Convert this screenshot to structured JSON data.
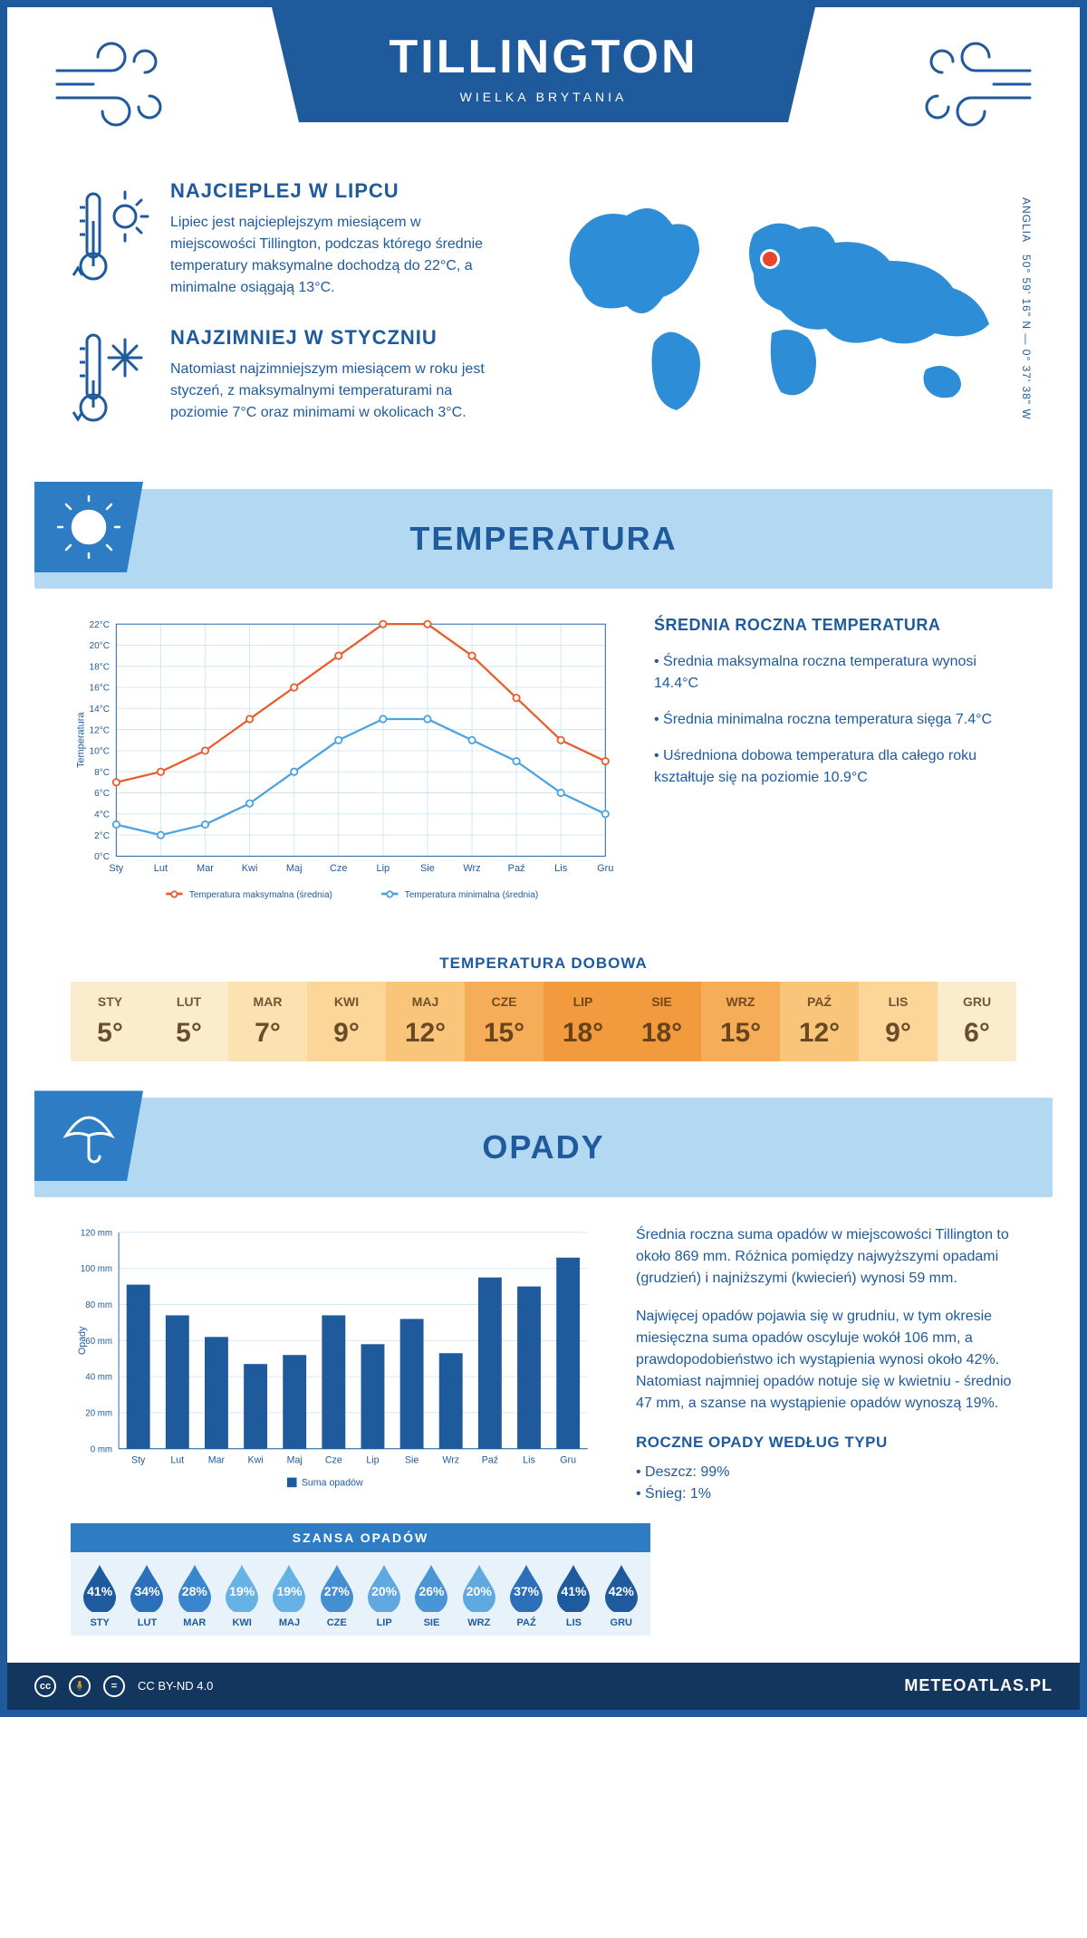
{
  "header": {
    "city": "TILLINGTON",
    "country": "WIELKA BRYTANIA"
  },
  "coords": {
    "lat": "50° 59' 16\" N",
    "lon": "0° 37' 38\" W",
    "region": "ANGLIA"
  },
  "facts": {
    "warmest": {
      "title": "NAJCIEPLEJ W LIPCU",
      "text": "Lipiec jest najcieplejszym miesiącem w miejscowości Tillington, podczas którego średnie temperatury maksymalne dochodzą do 22°C, a minimalne osiągają 13°C."
    },
    "coldest": {
      "title": "NAJZIMNIEJ W STYCZNIU",
      "text": "Natomiast najzimniejszym miesiącem w roku jest styczeń, z maksymalnymi temperaturami na poziomie 7°C oraz minimami w okolicach 3°C."
    }
  },
  "sections": {
    "temp": "TEMPERATURA",
    "precip": "OPADY"
  },
  "months_short": [
    "Sty",
    "Lut",
    "Mar",
    "Kwi",
    "Maj",
    "Cze",
    "Lip",
    "Sie",
    "Wrz",
    "Paź",
    "Lis",
    "Gru"
  ],
  "months_upper": [
    "STY",
    "LUT",
    "MAR",
    "KWI",
    "MAJ",
    "CZE",
    "LIP",
    "SIE",
    "WRZ",
    "PAŹ",
    "LIS",
    "GRU"
  ],
  "temp_chart": {
    "ylabel": "Temperatura",
    "ylim": [
      0,
      22
    ],
    "ytick_step": 2,
    "max_series": [
      7,
      8,
      10,
      13,
      16,
      19,
      22,
      22,
      19,
      15,
      11,
      9
    ],
    "min_series": [
      3,
      2,
      3,
      5,
      8,
      11,
      13,
      13,
      11,
      9,
      6,
      4
    ],
    "max_color": "#e85d2d",
    "min_color": "#4da3e0",
    "grid_color": "#cfe5f5",
    "legend_max": "Temperatura maksymalna (średnia)",
    "legend_min": "Temperatura minimalna (średnia)"
  },
  "temp_stats": {
    "title": "ŚREDNIA ROCZNA TEMPERATURA",
    "items": [
      "Średnia maksymalna roczna temperatura wynosi 14.4°C",
      "Średnia minimalna roczna temperatura sięga 7.4°C",
      "Uśredniona dobowa temperatura dla całego roku kształtuje się na poziomie 10.9°C"
    ]
  },
  "daily_temp": {
    "title": "TEMPERATURA DOBOWA",
    "values": [
      "5°",
      "5°",
      "7°",
      "9°",
      "12°",
      "15°",
      "18°",
      "18°",
      "15°",
      "12°",
      "9°",
      "6°"
    ],
    "colors": [
      "#fbeccd",
      "#fbeccd",
      "#fce2b0",
      "#fbd698",
      "#f9c57a",
      "#f6ad57",
      "#f29a3e",
      "#f29a3e",
      "#f6ad57",
      "#f9c57a",
      "#fbd698",
      "#fbeccd"
    ]
  },
  "precip_chart": {
    "ylabel": "Opady",
    "ylim": [
      0,
      120
    ],
    "ytick_step": 20,
    "values": [
      91,
      74,
      62,
      47,
      52,
      74,
      58,
      72,
      53,
      95,
      90,
      106
    ],
    "bar_color": "#1e5a9c",
    "grid_color": "#cfe5f5",
    "legend": "Suma opadów"
  },
  "precip_text": {
    "p1": "Średnia roczna suma opadów w miejscowości Tillington to około 869 mm. Różnica pomiędzy najwyższymi opadami (grudzień) i najniższymi (kwiecień) wynosi 59 mm.",
    "p2": "Najwięcej opadów pojawia się w grudniu, w tym okresie miesięczna suma opadów oscyluje wokół 106 mm, a prawdopodobieństwo ich wystąpienia wynosi około 42%. Natomiast najmniej opadów notuje się w kwietniu - średnio 47 mm, a szanse na wystąpienie opadów wynoszą 19%.",
    "type_title": "ROCZNE OPADY WEDŁUG TYPU",
    "type_items": [
      "Deszcz: 99%",
      "Śnieg: 1%"
    ]
  },
  "rain_chance": {
    "title": "SZANSA OPADÓW",
    "values": [
      "41%",
      "34%",
      "28%",
      "19%",
      "19%",
      "27%",
      "20%",
      "26%",
      "20%",
      "37%",
      "41%",
      "42%"
    ],
    "colors": [
      "#1e5a9c",
      "#2b70b8",
      "#3a86ce",
      "#66b2e6",
      "#66b2e6",
      "#448ed2",
      "#5fa9e0",
      "#4a95d6",
      "#5fa9e0",
      "#2b70b8",
      "#1e5a9c",
      "#1e5a9c"
    ]
  },
  "footer": {
    "license": "CC BY-ND 4.0",
    "brand": "METEOATLAS.PL"
  }
}
